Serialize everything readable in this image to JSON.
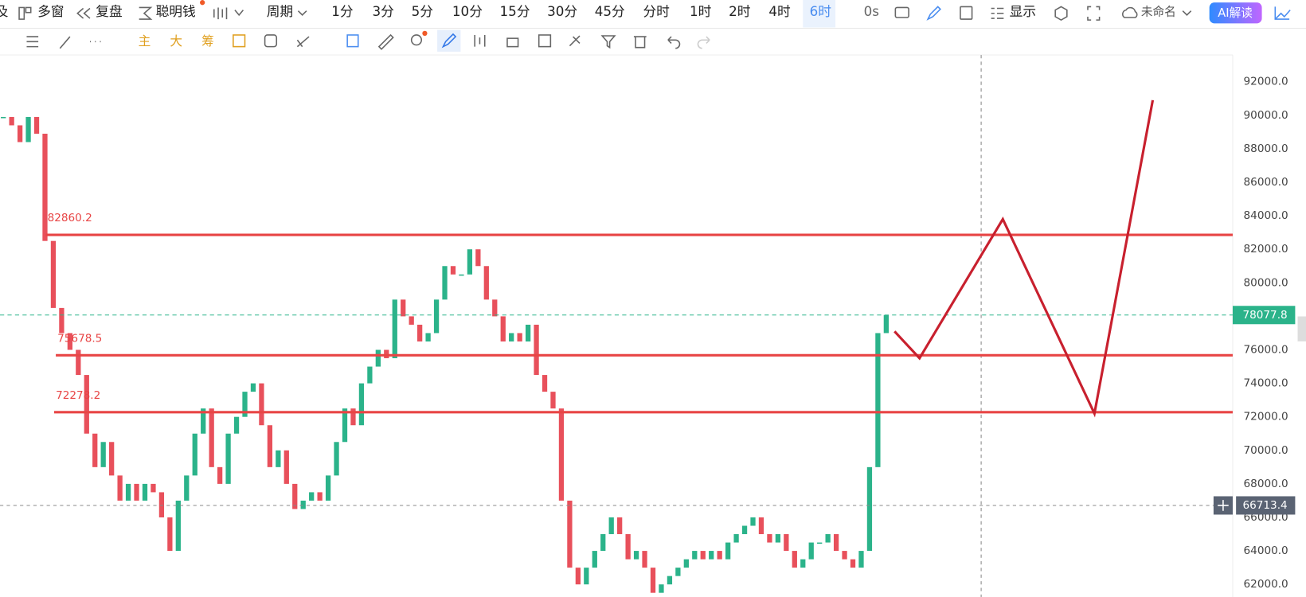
{
  "toolbar": {
    "items": [
      "及",
      "多窗",
      "复盘",
      "聪明钱",
      "周期"
    ],
    "periods": [
      "1分",
      "3分",
      "5分",
      "10分",
      "15分",
      "30分",
      "45分",
      "分时",
      "1时",
      "2时",
      "4时",
      "6时"
    ],
    "timer": "0s",
    "display": "显示",
    "layout_name": "未命名",
    "ai_button": "AI解读"
  },
  "toolbar2": {
    "labels": [
      "主",
      "大",
      "筹"
    ]
  },
  "chart": {
    "ylim": [
      61250,
      93500
    ],
    "yticks": [
      {
        "value": 62000,
        "label": "62000.0"
      },
      {
        "value": 64000,
        "label": "64000.0"
      },
      {
        "value": 66000,
        "label": "66000.0"
      },
      {
        "value": 68000,
        "label": "68000.0"
      },
      {
        "value": 70000,
        "label": "70000.0"
      },
      {
        "value": 72000,
        "label": "72000.0"
      },
      {
        "value": 74000,
        "label": "74000.0"
      },
      {
        "value": 76000,
        "label": "76000.0"
      },
      {
        "value": 78000,
        "label": "78000.0"
      },
      {
        "value": 80000,
        "label": "80000.0"
      },
      {
        "value": 82000,
        "label": "82000.0"
      },
      {
        "value": 84000,
        "label": "84000.0"
      },
      {
        "value": 86000,
        "label": "86000.0"
      },
      {
        "value": 88000,
        "label": "88000.0"
      },
      {
        "value": 90000,
        "label": "90000.0"
      },
      {
        "value": 92000,
        "label": "92000.0"
      }
    ],
    "closes": [
      89900,
      89400,
      88400,
      89900,
      88900,
      82500,
      78500,
      77000,
      76000,
      74500,
      71000,
      69000,
      70500,
      68500,
      67000,
      68000,
      67000,
      68000,
      67500,
      66000,
      64000,
      67000,
      68500,
      71000,
      72500,
      69000,
      68000,
      71000,
      72000,
      73500,
      74000,
      71500,
      69000,
      70000,
      68000,
      66500,
      67000,
      67500,
      67000,
      68500,
      70500,
      72500,
      71500,
      74000,
      75000,
      76000,
      75500,
      79000,
      78000,
      77500,
      76500,
      77000,
      79000,
      81000,
      80500,
      80500,
      82000,
      81000,
      79000,
      78000,
      76500,
      77000,
      76500,
      77500,
      74500,
      73500,
      72500,
      67000,
      63000,
      62000,
      63000,
      64000,
      65000,
      66000,
      65000,
      63500,
      64000,
      63000,
      61500,
      62000,
      62500,
      63000,
      63500,
      64000,
      63500,
      64000,
      63500,
      64500,
      65000,
      65500,
      66000,
      65000,
      64500,
      65000,
      64000,
      63000,
      63500,
      64500,
      64500,
      65000,
      64000,
      63500,
      63000,
      64000,
      69000,
      77000,
      78077.8
    ],
    "levels": [
      82860.2,
      75678.5,
      72278.2
    ],
    "last_price": 78077.8,
    "crosshair_price": 66713.4,
    "projection": {
      "x": [
        107,
        110,
        120,
        131,
        138
      ],
      "y": [
        77100,
        75500,
        83800,
        72200,
        90900
      ]
    }
  }
}
